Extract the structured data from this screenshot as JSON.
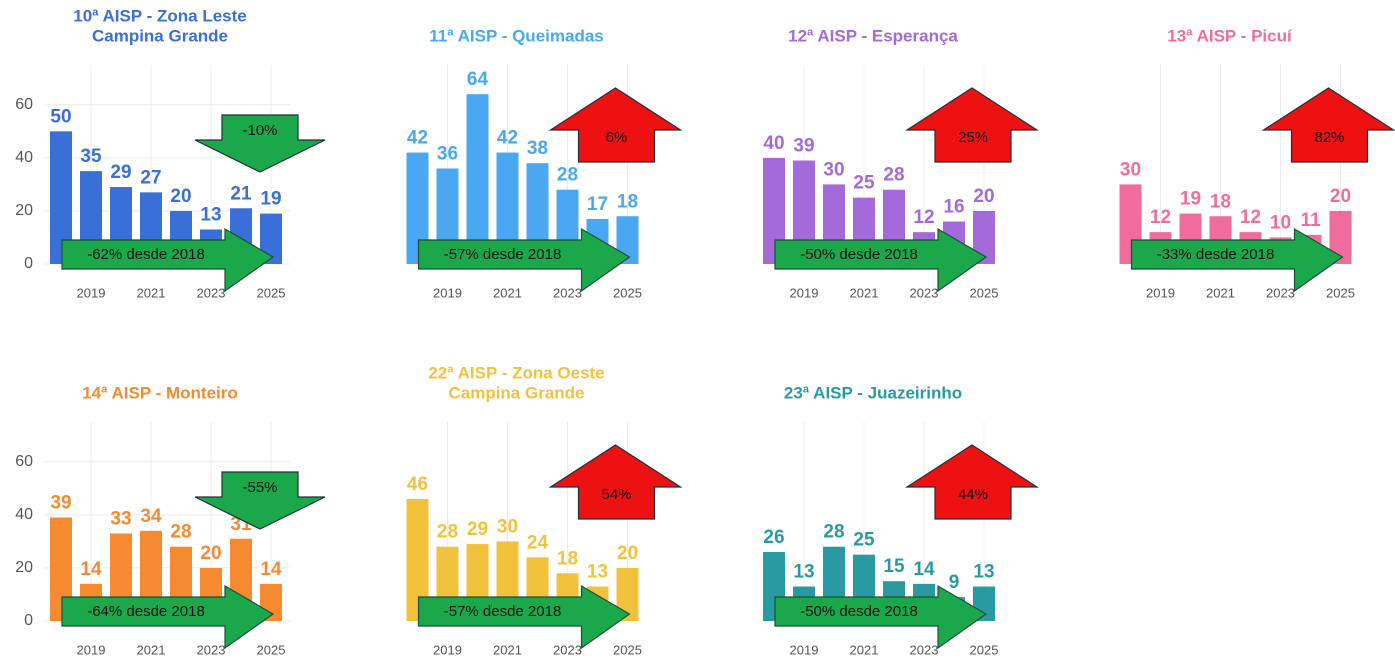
{
  "chart_data": [
    {
      "type": "bar",
      "title": [
        "10ª AISP - Zona Leste",
        "Campina Grande"
      ],
      "color": "#3a6fd8",
      "x": [
        2018,
        2019,
        2020,
        2021,
        2022,
        2023,
        2024,
        2025
      ],
      "values": [
        50,
        35,
        29,
        27,
        20,
        13,
        21,
        19
      ],
      "xlim": [
        2017.5,
        2025.5
      ],
      "xticks": [
        2019,
        2021,
        2023,
        2025
      ],
      "ylim": [
        0,
        75
      ],
      "yticks": [
        0,
        20,
        40,
        60
      ],
      "grid": true,
      "change_annotation": {
        "text": "-10%",
        "direction": "down",
        "color": "#1aa84b"
      },
      "baseline_annotation": {
        "text": "-62% desde 2018",
        "color": "#1aa84b"
      }
    },
    {
      "type": "bar",
      "title": [
        "11ª AISP - Queimadas"
      ],
      "color": "#4aa8f2",
      "x": [
        2018,
        2019,
        2020,
        2021,
        2022,
        2023,
        2024,
        2025
      ],
      "values": [
        42,
        36,
        64,
        42,
        38,
        28,
        17,
        18
      ],
      "xlim": [
        2017.5,
        2025.5
      ],
      "xticks": [
        2019,
        2021,
        2023,
        2025
      ],
      "ylim": [
        0,
        75
      ],
      "grid": true,
      "change_annotation": {
        "text": "6%",
        "direction": "up",
        "color": "#ee1111"
      },
      "baseline_annotation": {
        "text": "-57% desde 2018",
        "color": "#1aa84b"
      }
    },
    {
      "type": "bar",
      "title": [
        "12ª AISP - Esperança"
      ],
      "color": "#a46ad9",
      "x": [
        2018,
        2019,
        2020,
        2021,
        2022,
        2023,
        2024,
        2025
      ],
      "values": [
        40,
        39,
        30,
        25,
        28,
        12,
        16,
        20
      ],
      "xlim": [
        2017.5,
        2025.5
      ],
      "xticks": [
        2019,
        2021,
        2023,
        2025
      ],
      "ylim": [
        0,
        75
      ],
      "grid": true,
      "change_annotation": {
        "text": "25%",
        "direction": "up",
        "color": "#ee1111"
      },
      "baseline_annotation": {
        "text": "-50% desde 2018",
        "color": "#1aa84b"
      }
    },
    {
      "type": "bar",
      "title": [
        "13ª AISP - Picuí"
      ],
      "color": "#f06c9c",
      "x": [
        2018,
        2019,
        2020,
        2021,
        2022,
        2023,
        2024,
        2025
      ],
      "values": [
        30,
        12,
        19,
        18,
        12,
        10,
        11,
        20
      ],
      "xlim": [
        2017.5,
        2025.5
      ],
      "xticks": [
        2019,
        2021,
        2023,
        2025
      ],
      "ylim": [
        0,
        75
      ],
      "grid": true,
      "change_annotation": {
        "text": "82%",
        "direction": "up",
        "color": "#ee1111"
      },
      "baseline_annotation": {
        "text": "-33% desde 2018",
        "color": "#1aa84b"
      }
    },
    {
      "type": "bar",
      "title": [
        "14ª AISP - Monteiro"
      ],
      "color": "#f58a30",
      "x": [
        2018,
        2019,
        2020,
        2021,
        2022,
        2023,
        2024,
        2025
      ],
      "values": [
        39,
        14,
        33,
        34,
        28,
        20,
        31,
        14
      ],
      "xlim": [
        2017.5,
        2025.5
      ],
      "xticks": [
        2019,
        2021,
        2023,
        2025
      ],
      "ylim": [
        0,
        75
      ],
      "yticks": [
        0,
        20,
        40,
        60
      ],
      "grid": true,
      "change_annotation": {
        "text": "-55%",
        "direction": "down",
        "color": "#1aa84b"
      },
      "baseline_annotation": {
        "text": "-64% desde 2018",
        "color": "#1aa84b"
      }
    },
    {
      "type": "bar",
      "title": [
        "22ª AISP - Zona Oeste",
        "Campina Grande"
      ],
      "color": "#f3c23c",
      "x": [
        2018,
        2019,
        2020,
        2021,
        2022,
        2023,
        2024,
        2025
      ],
      "values": [
        46,
        28,
        29,
        30,
        24,
        18,
        13,
        20
      ],
      "xlim": [
        2017.5,
        2025.5
      ],
      "xticks": [
        2019,
        2021,
        2023,
        2025
      ],
      "ylim": [
        0,
        75
      ],
      "grid": true,
      "change_annotation": {
        "text": "54%",
        "direction": "up",
        "color": "#ee1111"
      },
      "baseline_annotation": {
        "text": "-57% desde 2018",
        "color": "#1aa84b"
      }
    },
    {
      "type": "bar",
      "title": [
        "23ª AISP - Juazeirinho"
      ],
      "color": "#2a9aa2",
      "x": [
        2018,
        2019,
        2020,
        2021,
        2022,
        2023,
        2024,
        2025
      ],
      "values": [
        26,
        13,
        28,
        25,
        15,
        14,
        9,
        13
      ],
      "xlim": [
        2017.5,
        2025.5
      ],
      "xticks": [
        2019,
        2021,
        2023,
        2025
      ],
      "ylim": [
        0,
        75
      ],
      "grid": true,
      "change_annotation": {
        "text": "44%",
        "direction": "up",
        "color": "#ee1111"
      },
      "baseline_annotation": {
        "text": "-50% desde 2018",
        "color": "#1aa84b"
      }
    }
  ]
}
